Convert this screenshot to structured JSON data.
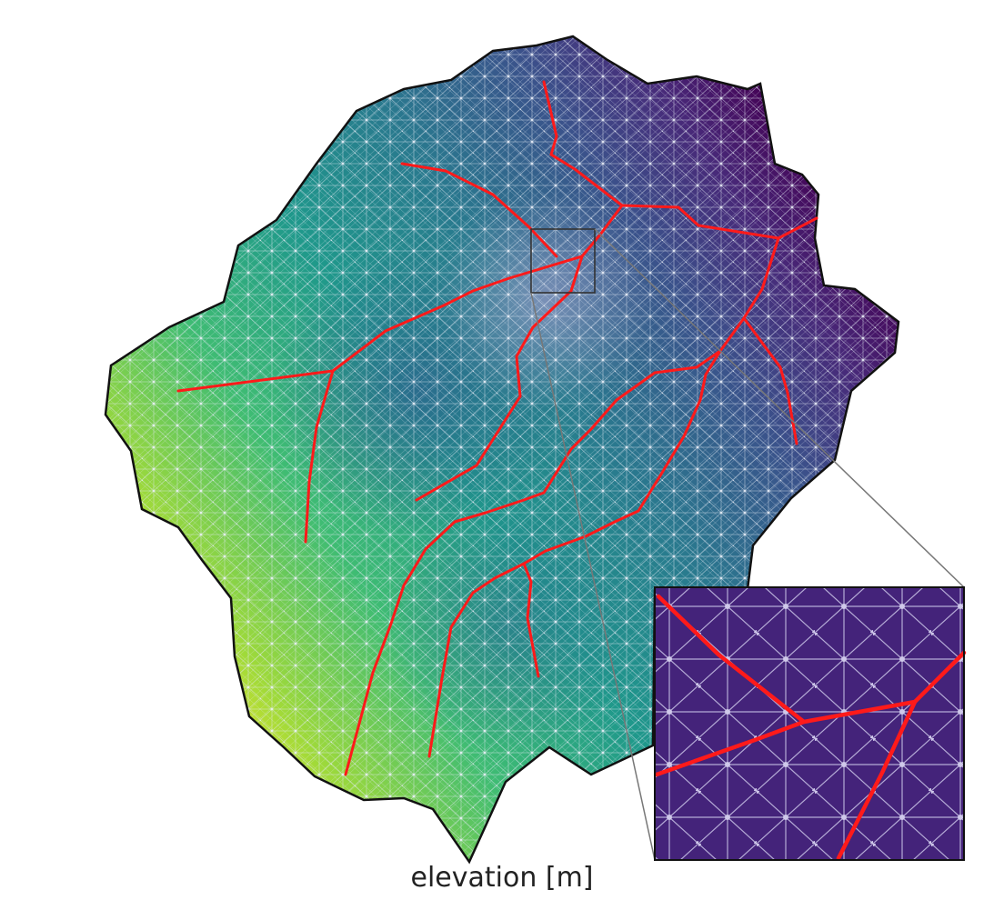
{
  "figure": {
    "colorbar_label": "elevation [m]",
    "colormap": "viridis",
    "mesh_line_color": "#d9dde6",
    "stream_color": "#ff1a1a",
    "boundary_color": "#111111",
    "inset_background": "#44237a"
  }
}
